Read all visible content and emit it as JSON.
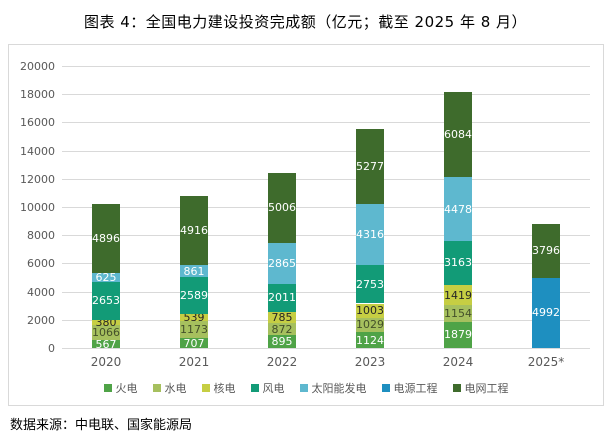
{
  "title": "图表 4：全国电力建设投资完成额（亿元；截至 2025 年 8 月）",
  "source_note": "数据来源：中电联、国家能源局",
  "colors": {
    "border": "#d9d9d9",
    "gridline": "#d9d9d9",
    "axis_text": "#595959"
  },
  "chart_data": {
    "type": "bar",
    "subtype": "stacked",
    "title": "图表 4：全国电力建设投资完成额（亿元；截至 2025 年 8 月）",
    "categories": [
      "2020",
      "2021",
      "2022",
      "2023",
      "2024",
      "2025*"
    ],
    "series": [
      {
        "name": "火电",
        "color": "#4FA347",
        "label_color": "#ffffff",
        "values": [
          567,
          707,
          895,
          1124,
          1879,
          null
        ]
      },
      {
        "name": "水电",
        "color": "#A6C05E",
        "label_color": "#44502a",
        "values": [
          1066,
          1173,
          872,
          1029,
          1154,
          null
        ]
      },
      {
        "name": "核电",
        "color": "#C6CE43",
        "label_color": "#262626",
        "values": [
          380,
          539,
          785,
          1003,
          1419,
          null
        ]
      },
      {
        "name": "风电",
        "color": "#129B77",
        "label_color": "#ffffff",
        "values": [
          2653,
          2589,
          2011,
          2753,
          3163,
          null
        ]
      },
      {
        "name": "太阳能发电",
        "color": "#5EB8CF",
        "label_color": "#ffffff",
        "values": [
          625,
          861,
          2865,
          4316,
          4478,
          null
        ]
      },
      {
        "name": "电源工程",
        "color": "#1E8FC0",
        "label_color": "#ffffff",
        "values": [
          null,
          null,
          null,
          null,
          null,
          4992
        ]
      },
      {
        "name": "电网工程",
        "color": "#3E6B2C",
        "label_color": "#ffffff",
        "values": [
          4896,
          4916,
          5006,
          5277,
          6084,
          3796
        ]
      }
    ],
    "xlabel": "",
    "ylabel": "",
    "ylim": [
      0,
      20000
    ],
    "ytick_step": 2000,
    "ytick_labels": [
      "0",
      "2000",
      "4000",
      "6000",
      "8000",
      "10000",
      "12000",
      "14000",
      "16000",
      "18000",
      "20000"
    ],
    "grid": true,
    "legend_position": "bottom"
  }
}
